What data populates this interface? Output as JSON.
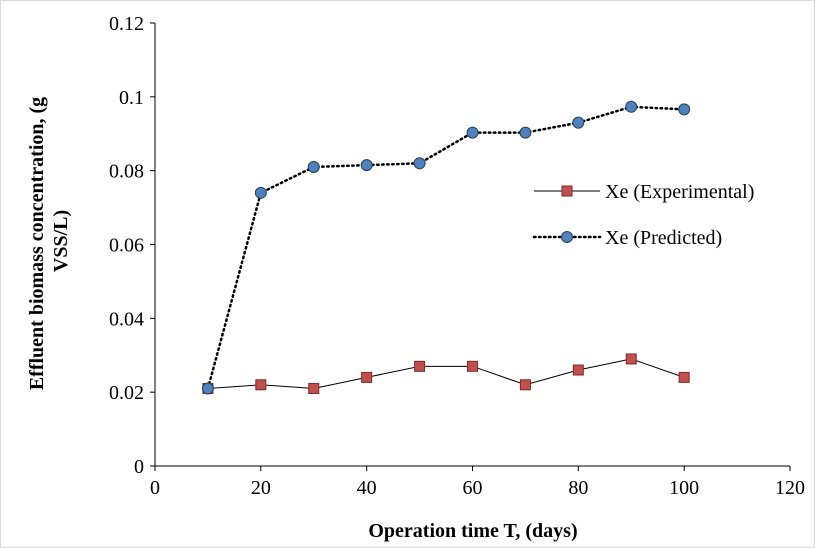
{
  "chart_data": {
    "type": "line",
    "title": "",
    "xlabel": "Operation time T, (days)",
    "ylabel": "Effluent biomass concentration, (g VSS/L)",
    "ylabel_lines": [
      "Effluent biomass concentration, (g",
      "VSS/L)"
    ],
    "xlim": [
      0,
      120
    ],
    "ylim": [
      0,
      0.12
    ],
    "x_ticks": [
      0,
      20,
      40,
      60,
      80,
      100,
      120
    ],
    "y_ticks": [
      0,
      0.02,
      0.04,
      0.06,
      0.08,
      0.1,
      0.12
    ],
    "x_tick_labels": [
      "0",
      "20",
      "40",
      "60",
      "80",
      "100",
      "120"
    ],
    "y_tick_labels": [
      "0",
      "0.02",
      "0.04",
      "0.06",
      "0.08",
      "0.1",
      "0.12"
    ],
    "grid": false,
    "legend_position": "right",
    "x": [
      10,
      20,
      30,
      40,
      50,
      60,
      70,
      80,
      90,
      100
    ],
    "series": [
      {
        "name": "Xe (Experimental)",
        "values": [
          0.021,
          0.022,
          0.021,
          0.024,
          0.027,
          0.027,
          0.022,
          0.026,
          0.029,
          0.024
        ],
        "line_style": "solid",
        "marker": "square",
        "marker_color": "#c0504d",
        "line_color": "#000000"
      },
      {
        "name": "Xe (Predicted)",
        "values": [
          0.021,
          0.074,
          0.081,
          0.0815,
          0.082,
          0.0903,
          0.0903,
          0.093,
          0.0973,
          0.0966
        ],
        "line_style": "dotted",
        "marker": "circle",
        "marker_color": "#4f81bd",
        "line_color": "#000000"
      }
    ]
  }
}
